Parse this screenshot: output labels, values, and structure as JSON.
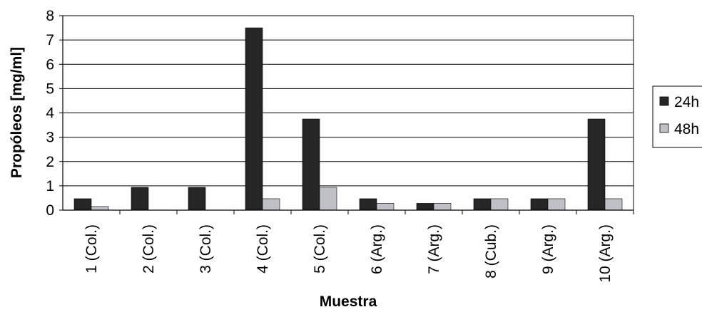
{
  "chart_data": {
    "type": "bar",
    "categories": [
      "1 (Col.)",
      "2 (Col.)",
      "3 (Col.)",
      "4 (Col.)",
      "5 (Col.)",
      "6 (Arg.)",
      "7 (Arg.)",
      "8 (Cub.)",
      "9 (Arg.)",
      "10 (Arg.)"
    ],
    "series": [
      {
        "name": "24h",
        "values": [
          0.47,
          0.94,
          0.94,
          7.5,
          3.75,
          0.47,
          0.28,
          0.47,
          0.47,
          3.75
        ],
        "color": "#262626"
      },
      {
        "name": "48h",
        "values": [
          0.15,
          0,
          0,
          0.47,
          0.94,
          0.28,
          0.28,
          0.47,
          0.47,
          0.47
        ],
        "color": "#c0c0c8"
      }
    ],
    "xlabel": "Muestra",
    "ylabel": "Propóleos [mg/ml]",
    "ylim": [
      0,
      8
    ],
    "yticks": [
      "0",
      "1",
      "2",
      "3",
      "4",
      "5",
      "6",
      "7",
      "8"
    ],
    "grid": true,
    "legend_position": "right"
  }
}
